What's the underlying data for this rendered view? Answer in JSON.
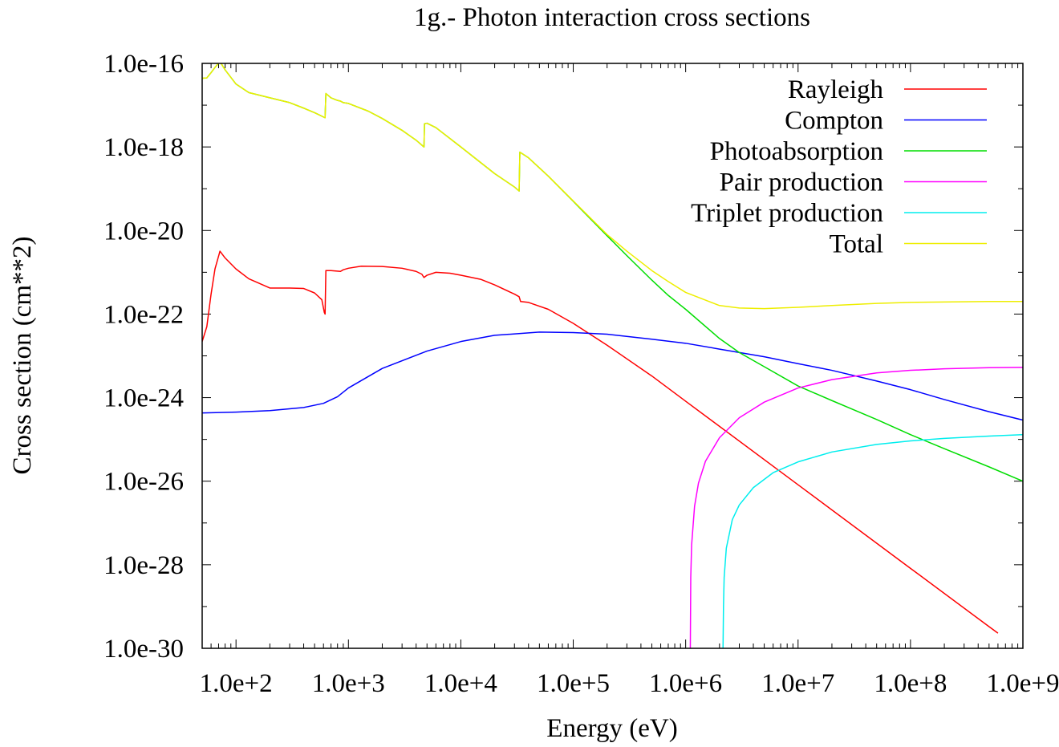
{
  "chart_data": {
    "type": "line",
    "title": "1g.- Photon interaction cross sections",
    "xlabel": "Energy (eV)",
    "ylabel": "Cross section (cm**2)",
    "x_scale": "log",
    "y_scale": "log",
    "xlim": [
      50,
      1000000000
    ],
    "ylim": [
      1e-30,
      1e-16
    ],
    "x_ticks": [
      {
        "value": 100,
        "label": "1.0e+2"
      },
      {
        "value": 1000,
        "label": "1.0e+3"
      },
      {
        "value": 10000,
        "label": "1.0e+4"
      },
      {
        "value": 100000,
        "label": "1.0e+5"
      },
      {
        "value": 1000000,
        "label": "1.0e+6"
      },
      {
        "value": 10000000,
        "label": "1.0e+7"
      },
      {
        "value": 100000000,
        "label": "1.0e+8"
      },
      {
        "value": 1000000000,
        "label": "1.0e+9"
      }
    ],
    "y_ticks": [
      {
        "value": 1e-16,
        "label": "1.0e-16"
      },
      {
        "value": 1e-18,
        "label": "1.0e-18"
      },
      {
        "value": 1e-20,
        "label": "1.0e-20"
      },
      {
        "value": 1e-22,
        "label": "1.0e-22"
      },
      {
        "value": 1e-24,
        "label": "1.0e-24"
      },
      {
        "value": 1e-26,
        "label": "1.0e-26"
      },
      {
        "value": 1e-28,
        "label": "1.0e-28"
      },
      {
        "value": 1e-30,
        "label": "1.0e-30"
      }
    ],
    "grid": false,
    "legend_position": "top-right",
    "series": [
      {
        "name": "Rayleigh",
        "color": "#ff0000",
        "points": [
          [
            50,
            2.2e-23
          ],
          [
            55,
            5e-23
          ],
          [
            60,
            3e-22
          ],
          [
            65,
            1.2e-21
          ],
          [
            72,
            3.2e-21
          ],
          [
            80,
            2.2e-21
          ],
          [
            100,
            1.2e-21
          ],
          [
            130,
            7e-22
          ],
          [
            200,
            4.2e-22
          ],
          [
            300,
            4.2e-22
          ],
          [
            400,
            4.1e-22
          ],
          [
            500,
            3.2e-22
          ],
          [
            580,
            2.2e-22
          ],
          [
            610,
            1.1e-22
          ],
          [
            620,
            1e-22
          ],
          [
            630,
            1.1e-21
          ],
          [
            700,
            1.1e-21
          ],
          [
            850,
            1.05e-21
          ],
          [
            900,
            1.15e-21
          ],
          [
            1000,
            1.25e-21
          ],
          [
            1300,
            1.4e-21
          ],
          [
            2000,
            1.38e-21
          ],
          [
            3000,
            1.25e-21
          ],
          [
            4000,
            1.05e-21
          ],
          [
            4500,
            9e-22
          ],
          [
            4700,
            7.5e-22
          ],
          [
            5000,
            8.5e-22
          ],
          [
            6000,
            1e-21
          ],
          [
            8000,
            9.5e-22
          ],
          [
            10000,
            8.5e-22
          ],
          [
            15000,
            6.8e-22
          ],
          [
            20000,
            5e-22
          ],
          [
            30000,
            3e-22
          ],
          [
            33000,
            2.6e-22
          ],
          [
            34000,
            2e-22
          ],
          [
            40000,
            1.9e-22
          ],
          [
            60000,
            1.3e-22
          ],
          [
            100000,
            6e-23
          ],
          [
            200000,
            1.8e-23
          ],
          [
            500000,
            3.3e-24
          ],
          [
            1000000,
            8.2e-25
          ],
          [
            10000000,
            8.2e-27
          ],
          [
            100000000,
            8.2e-29
          ],
          [
            500000000,
            3.3e-30
          ],
          [
            600000000,
            2.3e-30
          ]
        ]
      },
      {
        "name": "Compton",
        "color": "#0000ff",
        "points": [
          [
            50,
            4.3e-25
          ],
          [
            100,
            4.5e-25
          ],
          [
            200,
            4.9e-25
          ],
          [
            400,
            5.8e-25
          ],
          [
            600,
            7.3e-25
          ],
          [
            800,
            1.05e-24
          ],
          [
            1000,
            1.7e-24
          ],
          [
            2000,
            5e-24
          ],
          [
            5000,
            1.3e-23
          ],
          [
            10000,
            2.2e-23
          ],
          [
            20000,
            3.1e-23
          ],
          [
            50000,
            3.7e-23
          ],
          [
            100000,
            3.6e-23
          ],
          [
            200000,
            3.3e-23
          ],
          [
            500000,
            2.5e-23
          ],
          [
            1000000,
            2e-23
          ],
          [
            2000000,
            1.45e-23
          ],
          [
            5000000,
            9.5e-24
          ],
          [
            10000000,
            6.5e-24
          ],
          [
            20000000,
            4.5e-24
          ],
          [
            50000000,
            2.5e-24
          ],
          [
            100000000,
            1.55e-24
          ],
          [
            200000000,
            9e-25
          ],
          [
            500000000,
            4.6e-25
          ],
          [
            1000000000,
            2.9e-25
          ]
        ]
      },
      {
        "name": "Photoabsorption",
        "color": "#00dd00",
        "points": [
          [
            50,
            4.4e-17
          ],
          [
            55,
            4.5e-17
          ],
          [
            60,
            6e-17
          ],
          [
            65,
            8e-17
          ],
          [
            72,
            1.1e-16
          ],
          [
            80,
            7e-17
          ],
          [
            100,
            3.2e-17
          ],
          [
            130,
            2e-17
          ],
          [
            200,
            1.5e-17
          ],
          [
            300,
            1.15e-17
          ],
          [
            400,
            8.5e-18
          ],
          [
            500,
            6.6e-18
          ],
          [
            620,
            5e-18
          ],
          [
            630,
            1.9e-17
          ],
          [
            700,
            1.5e-17
          ],
          [
            800,
            1.3e-17
          ],
          [
            850,
            1.25e-17
          ],
          [
            900,
            1.15e-17
          ],
          [
            1000,
            1.1e-17
          ],
          [
            1500,
            7.2e-18
          ],
          [
            2000,
            4.8e-18
          ],
          [
            3000,
            2.5e-18
          ],
          [
            4000,
            1.45e-18
          ],
          [
            4700,
            1e-18
          ],
          [
            4750,
            3.6e-18
          ],
          [
            5000,
            3.7e-18
          ],
          [
            6000,
            2.9e-18
          ],
          [
            10000,
            1e-18
          ],
          [
            20000,
            2.3e-19
          ],
          [
            30000,
            1.1e-19
          ],
          [
            33000,
            8.8e-20
          ],
          [
            33500,
            7.5e-19
          ],
          [
            40000,
            5.5e-19
          ],
          [
            60000,
            2e-19
          ],
          [
            100000,
            5e-20
          ],
          [
            200000,
            7.5e-21
          ],
          [
            300000,
            2.5e-21
          ],
          [
            500000,
            6.5e-22
          ],
          [
            700000,
            2.8e-22
          ],
          [
            1000000,
            1.3e-22
          ],
          [
            2000000,
            2.6e-23
          ],
          [
            3000000,
            1.2e-23
          ],
          [
            5000000,
            5.5e-24
          ],
          [
            10000000,
            1.9e-24
          ],
          [
            20000000,
            8.5e-25
          ],
          [
            50000000,
            3e-25
          ],
          [
            100000000,
            1.3e-25
          ],
          [
            200000000,
            6e-26
          ],
          [
            500000000,
            2.2e-26
          ],
          [
            1000000000,
            1e-26
          ]
        ]
      },
      {
        "name": "Pair production",
        "color": "#ff00ff",
        "points": [
          [
            1100000,
            1e-30
          ],
          [
            1110000,
            5e-29
          ],
          [
            1130000,
            3e-28
          ],
          [
            1200000,
            2.5e-27
          ],
          [
            1300000,
            9e-27
          ],
          [
            1500000,
            3e-26
          ],
          [
            2000000,
            1.1e-25
          ],
          [
            3000000,
            3.3e-25
          ],
          [
            5000000,
            7.8e-25
          ],
          [
            10000000,
            1.7e-24
          ],
          [
            20000000,
            2.7e-24
          ],
          [
            50000000,
            3.9e-24
          ],
          [
            100000000,
            4.5e-24
          ],
          [
            200000000,
            4.9e-24
          ],
          [
            500000000,
            5.2e-24
          ],
          [
            1000000000,
            5.3e-24
          ]
        ]
      },
      {
        "name": "Triplet production",
        "color": "#00eeee",
        "points": [
          [
            2150000,
            1e-30
          ],
          [
            2170000,
            1e-29
          ],
          [
            2200000,
            5e-29
          ],
          [
            2300000,
            2.5e-28
          ],
          [
            2600000,
            1.2e-27
          ],
          [
            3000000,
            2.7e-27
          ],
          [
            4000000,
            7e-27
          ],
          [
            6000000,
            1.6e-26
          ],
          [
            10000000,
            2.9e-26
          ],
          [
            20000000,
            5e-26
          ],
          [
            50000000,
            7.6e-26
          ],
          [
            100000000,
            9.2e-26
          ],
          [
            200000000,
            1.06e-25
          ],
          [
            500000000,
            1.2e-25
          ],
          [
            1000000000,
            1.3e-25
          ]
        ]
      },
      {
        "name": "Total",
        "color": "#eeee00",
        "points": [
          [
            50,
            4.4e-17
          ],
          [
            55,
            4.5e-17
          ],
          [
            60,
            6e-17
          ],
          [
            65,
            8e-17
          ],
          [
            72,
            1.1e-16
          ],
          [
            80,
            7e-17
          ],
          [
            100,
            3.2e-17
          ],
          [
            130,
            2e-17
          ],
          [
            200,
            1.5e-17
          ],
          [
            300,
            1.15e-17
          ],
          [
            400,
            8.5e-18
          ],
          [
            500,
            6.6e-18
          ],
          [
            620,
            5e-18
          ],
          [
            630,
            1.9e-17
          ],
          [
            700,
            1.5e-17
          ],
          [
            800,
            1.3e-17
          ],
          [
            850,
            1.25e-17
          ],
          [
            900,
            1.15e-17
          ],
          [
            1000,
            1.1e-17
          ],
          [
            1500,
            7.2e-18
          ],
          [
            2000,
            4.8e-18
          ],
          [
            3000,
            2.5e-18
          ],
          [
            4000,
            1.45e-18
          ],
          [
            4700,
            1e-18
          ],
          [
            4750,
            3.6e-18
          ],
          [
            5000,
            3.7e-18
          ],
          [
            6000,
            2.9e-18
          ],
          [
            10000,
            1e-18
          ],
          [
            20000,
            2.3e-19
          ],
          [
            30000,
            1.1e-19
          ],
          [
            33000,
            8.8e-20
          ],
          [
            33500,
            7.5e-19
          ],
          [
            40000,
            5.5e-19
          ],
          [
            60000,
            2e-19
          ],
          [
            100000,
            5.1e-20
          ],
          [
            200000,
            8e-21
          ],
          [
            300000,
            3.2e-21
          ],
          [
            500000,
            1.1e-21
          ],
          [
            700000,
            6e-22
          ],
          [
            1000000,
            3.3e-22
          ],
          [
            2000000,
            1.6e-22
          ],
          [
            3000000,
            1.4e-22
          ],
          [
            5000000,
            1.35e-22
          ],
          [
            10000000,
            1.45e-22
          ],
          [
            20000000,
            1.6e-22
          ],
          [
            50000000,
            1.8e-22
          ],
          [
            100000000,
            1.9e-22
          ],
          [
            200000000,
            1.95e-22
          ],
          [
            500000000,
            2e-22
          ],
          [
            1000000000,
            2e-22
          ]
        ]
      }
    ]
  }
}
